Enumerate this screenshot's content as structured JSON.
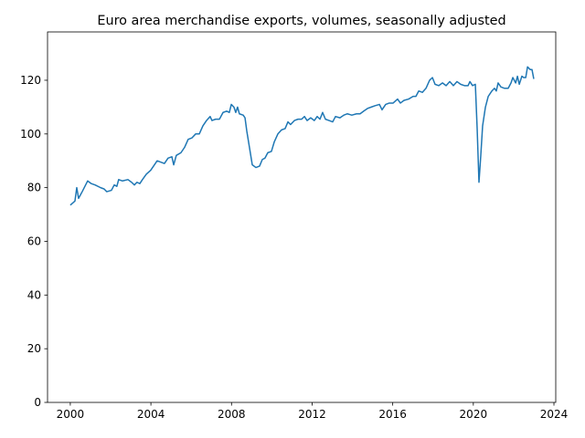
{
  "chart_data": {
    "type": "line",
    "title": "Euro area merchandise exports, volumes, seasonally adjusted",
    "color": "#1f77b4",
    "x": [
      2000.0,
      2000.23,
      2000.32,
      2000.41,
      2000.59,
      2000.86,
      2001.04,
      2001.23,
      2001.5,
      2001.68,
      2001.81,
      2002.04,
      2002.18,
      2002.31,
      2002.4,
      2002.59,
      2002.86,
      2003.04,
      2003.18,
      2003.31,
      2003.45,
      2003.58,
      2003.77,
      2003.99,
      2004.13,
      2004.31,
      2004.49,
      2004.67,
      2004.85,
      2005.04,
      2005.13,
      2005.26,
      2005.49,
      2005.67,
      2005.85,
      2006.03,
      2006.22,
      2006.4,
      2006.58,
      2006.76,
      2006.94,
      2007.03,
      2007.21,
      2007.4,
      2007.58,
      2007.76,
      2007.89,
      2007.99,
      2008.12,
      2008.21,
      2008.3,
      2008.39,
      2008.58,
      2008.67,
      2008.76,
      2008.89,
      2009.03,
      2009.21,
      2009.39,
      2009.53,
      2009.66,
      2009.8,
      2009.98,
      2010.12,
      2010.3,
      2010.48,
      2010.66,
      2010.8,
      2010.93,
      2011.12,
      2011.3,
      2011.48,
      2011.62,
      2011.75,
      2011.93,
      2012.11,
      2012.25,
      2012.39,
      2012.52,
      2012.66,
      2012.84,
      2013.02,
      2013.16,
      2013.38,
      2013.57,
      2013.75,
      2013.97,
      2014.2,
      2014.38,
      2014.56,
      2014.75,
      2014.93,
      2015.11,
      2015.34,
      2015.47,
      2015.65,
      2015.83,
      2016.02,
      2016.24,
      2016.38,
      2016.56,
      2016.79,
      2017.01,
      2017.15,
      2017.29,
      2017.47,
      2017.65,
      2017.83,
      2017.97,
      2018.1,
      2018.28,
      2018.47,
      2018.65,
      2018.83,
      2019.01,
      2019.19,
      2019.37,
      2019.56,
      2019.74,
      2019.83,
      2019.96,
      2020.1,
      2020.19,
      2020.28,
      2020.37,
      2020.46,
      2020.6,
      2020.74,
      2020.92,
      2021.05,
      2021.14,
      2021.23,
      2021.37,
      2021.55,
      2021.73,
      2021.87,
      2021.96,
      2022.1,
      2022.19,
      2022.28,
      2022.41,
      2022.5,
      2022.6,
      2022.69,
      2022.82,
      2022.91,
      2023.0
    ],
    "values": [
      73.5,
      75,
      80,
      76,
      78.5,
      82.5,
      81.5,
      81,
      80,
      79.5,
      78.5,
      79,
      81,
      80.5,
      83,
      82.5,
      83,
      82,
      81,
      82,
      81.5,
      83,
      85,
      86.5,
      88,
      90,
      89.5,
      89,
      91,
      91.5,
      88.5,
      92,
      93,
      95,
      98,
      98.5,
      100,
      100,
      103,
      105,
      106.5,
      105,
      105.5,
      105.5,
      108,
      108.5,
      108,
      111,
      110,
      108,
      110,
      107.5,
      107,
      106,
      101,
      95,
      88.5,
      87.5,
      88,
      90.5,
      91,
      93,
      93.5,
      97,
      100,
      101.5,
      102,
      104.5,
      103.5,
      105,
      105.5,
      105.5,
      106.5,
      105,
      106,
      105,
      106.5,
      105.5,
      108,
      105.5,
      105,
      104.5,
      106.5,
      106,
      107,
      107.5,
      107,
      107.5,
      107.5,
      108.5,
      109.5,
      110,
      110.5,
      111,
      109,
      111,
      111.5,
      111.5,
      113,
      111.5,
      112.5,
      113,
      114,
      114,
      116,
      115.5,
      117,
      120,
      121,
      118.5,
      118,
      119,
      118,
      119.5,
      118,
      119.5,
      118.5,
      118,
      118,
      119.5,
      118,
      118.5,
      102,
      82,
      92,
      103,
      110,
      114,
      116,
      117,
      116,
      119,
      117.5,
      117,
      117,
      119,
      121,
      119,
      121.5,
      118.5,
      121.5,
      121,
      121,
      125,
      124,
      124,
      120.5
    ],
    "xlim": [
      1998.87,
      2024.09
    ],
    "xticks": [
      2000,
      2004,
      2008,
      2012,
      2016,
      2020,
      2024
    ],
    "ylim": [
      0,
      138
    ],
    "yticks": [
      0,
      20,
      40,
      60,
      80,
      100,
      120
    ],
    "grid": false
  }
}
